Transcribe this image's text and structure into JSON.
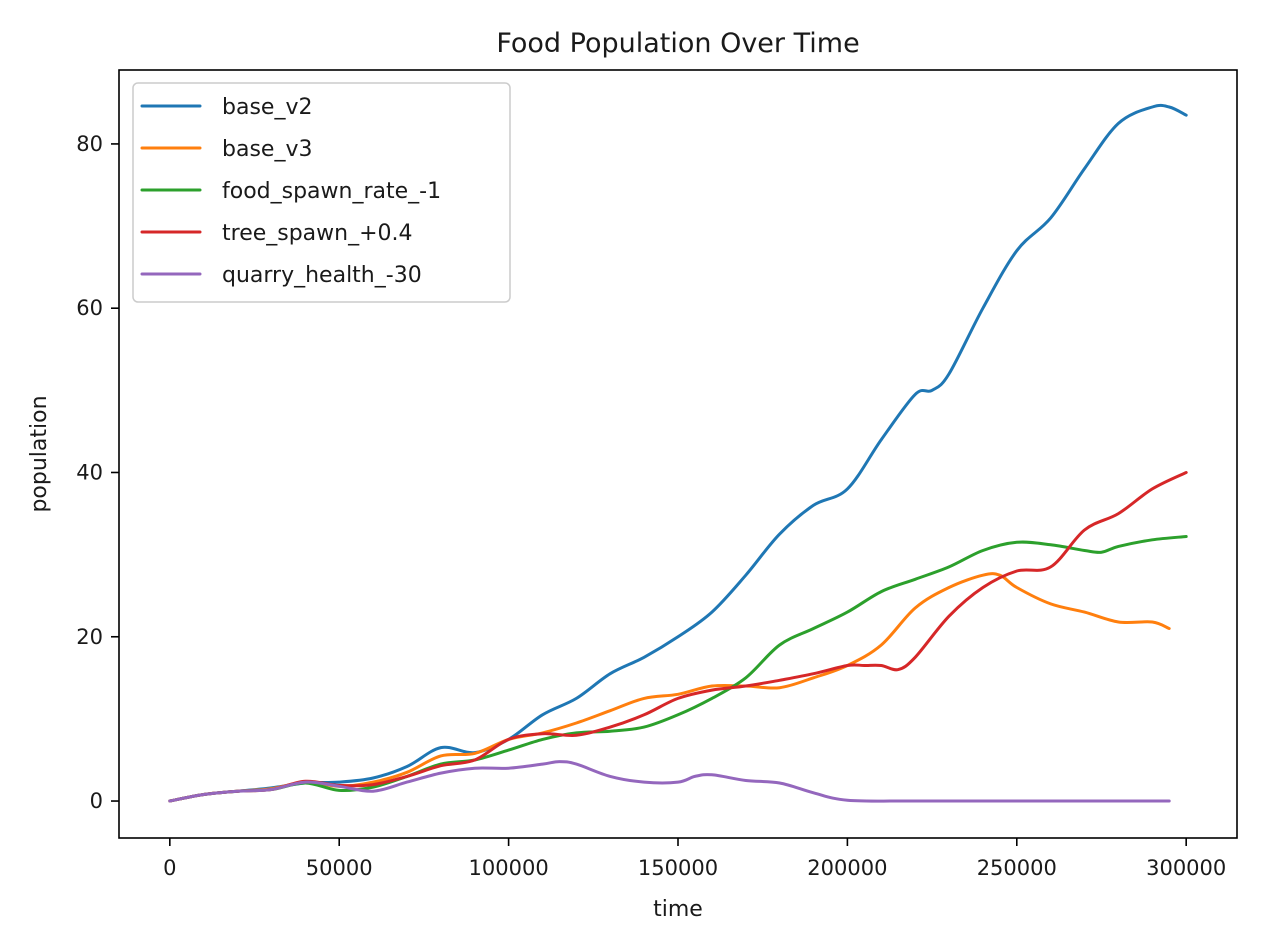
{
  "chart_data": {
    "type": "line",
    "title": "Food Population Over Time",
    "xlabel": "time",
    "ylabel": "population",
    "xlim": [
      -15000,
      315000
    ],
    "ylim": [
      -4.5,
      89
    ],
    "xticks": [
      0,
      50000,
      100000,
      150000,
      200000,
      250000,
      300000
    ],
    "xtick_labels": [
      "0",
      "50000",
      "100000",
      "150000",
      "200000",
      "250000",
      "300000"
    ],
    "yticks": [
      0,
      20,
      40,
      60,
      80
    ],
    "ytick_labels": [
      "0",
      "20",
      "40",
      "60",
      "80"
    ],
    "grid": false,
    "legend_position": "top-left",
    "series": [
      {
        "name": "base_v2",
        "color": "#1f77b4",
        "x": [
          0,
          10000,
          20000,
          30000,
          40000,
          50000,
          60000,
          70000,
          80000,
          90000,
          100000,
          110000,
          120000,
          130000,
          140000,
          150000,
          160000,
          170000,
          180000,
          190000,
          200000,
          210000,
          220000,
          225000,
          230000,
          240000,
          250000,
          260000,
          270000,
          280000,
          290000,
          295000,
          300000
        ],
        "y": [
          0,
          0.8,
          1.2,
          1.6,
          2.2,
          2.3,
          2.8,
          4.2,
          6.5,
          5.9,
          7.5,
          10.5,
          12.5,
          15.5,
          17.5,
          20,
          23,
          27.5,
          32.5,
          36,
          38,
          44,
          49.5,
          50,
          52,
          60,
          67,
          71,
          77,
          82.5,
          84.5,
          84.5,
          83.5
        ]
      },
      {
        "name": "base_v3",
        "color": "#ff7f0e",
        "x": [
          0,
          10000,
          20000,
          30000,
          40000,
          50000,
          60000,
          70000,
          80000,
          90000,
          100000,
          110000,
          120000,
          130000,
          140000,
          150000,
          160000,
          170000,
          180000,
          190000,
          200000,
          210000,
          220000,
          230000,
          240000,
          245000,
          250000,
          260000,
          270000,
          280000,
          290000,
          295000
        ],
        "y": [
          0,
          0.8,
          1.2,
          1.5,
          2.3,
          1.8,
          2.3,
          3.5,
          5.5,
          5.8,
          7.5,
          8.3,
          9.5,
          11,
          12.5,
          13,
          14,
          14,
          13.8,
          15,
          16.5,
          19,
          23.5,
          26,
          27.5,
          27.5,
          26,
          24,
          23,
          21.8,
          21.8,
          21
        ]
      },
      {
        "name": "food_spawn_rate_-1",
        "color": "#2ca02c",
        "x": [
          0,
          10000,
          20000,
          30000,
          40000,
          50000,
          60000,
          70000,
          80000,
          90000,
          100000,
          110000,
          120000,
          130000,
          140000,
          150000,
          160000,
          170000,
          180000,
          190000,
          200000,
          210000,
          220000,
          230000,
          240000,
          250000,
          260000,
          270000,
          275000,
          280000,
          290000,
          300000
        ],
        "y": [
          0,
          0.8,
          1.2,
          1.4,
          2.2,
          1.3,
          1.7,
          3,
          4.5,
          5,
          6.2,
          7.5,
          8.3,
          8.5,
          9,
          10.5,
          12.5,
          15,
          19,
          21,
          23,
          25.5,
          27,
          28.5,
          30.5,
          31.5,
          31.2,
          30.5,
          30.3,
          31,
          31.8,
          32.2
        ]
      },
      {
        "name": "tree_spawn_+0.4",
        "color": "#d62728",
        "x": [
          0,
          10000,
          20000,
          30000,
          40000,
          50000,
          60000,
          70000,
          80000,
          90000,
          100000,
          110000,
          120000,
          130000,
          140000,
          150000,
          160000,
          170000,
          180000,
          190000,
          200000,
          205000,
          210000,
          215000,
          220000,
          230000,
          240000,
          250000,
          260000,
          270000,
          280000,
          290000,
          300000
        ],
        "y": [
          0,
          0.8,
          1.2,
          1.4,
          2.4,
          1.9,
          2,
          3,
          4.3,
          5,
          7.5,
          8.2,
          8,
          9,
          10.5,
          12.5,
          13.5,
          14,
          14.7,
          15.5,
          16.5,
          16.5,
          16.5,
          16,
          17.5,
          22.5,
          26,
          28,
          28.5,
          33,
          35,
          38,
          40
        ]
      },
      {
        "name": "quarry_health_-30",
        "color": "#9467bd",
        "x": [
          0,
          10000,
          20000,
          30000,
          40000,
          50000,
          60000,
          70000,
          80000,
          90000,
          100000,
          110000,
          115000,
          120000,
          130000,
          140000,
          150000,
          155000,
          160000,
          170000,
          180000,
          190000,
          200000,
          220000,
          250000,
          280000,
          295000
        ],
        "y": [
          0,
          0.8,
          1.2,
          1.4,
          2.3,
          1.8,
          1.2,
          2.3,
          3.4,
          4,
          4,
          4.5,
          4.8,
          4.5,
          3,
          2.3,
          2.3,
          3,
          3.2,
          2.5,
          2.2,
          1,
          0.1,
          0,
          0,
          0,
          0
        ]
      }
    ]
  }
}
